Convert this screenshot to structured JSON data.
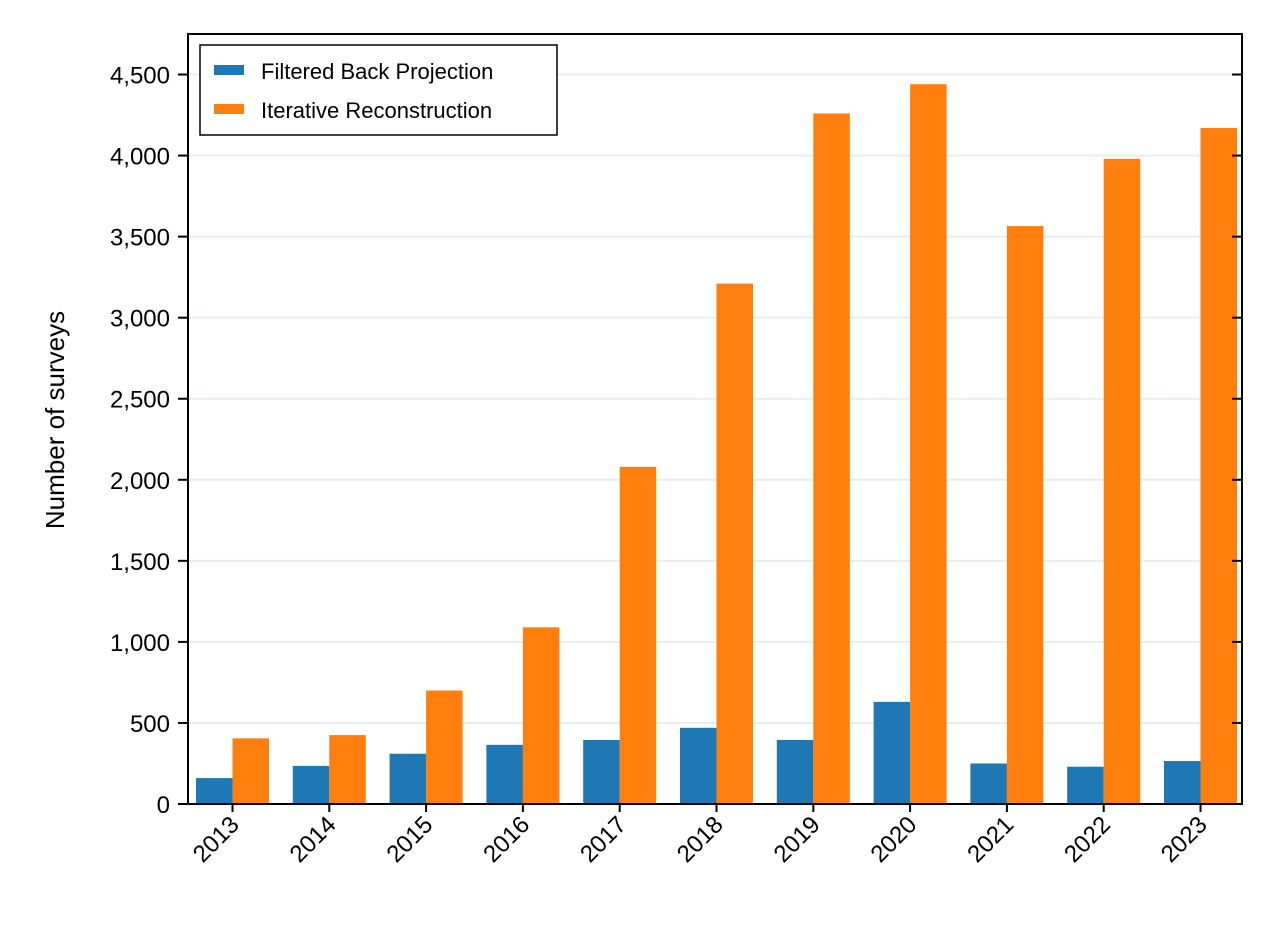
{
  "colors": {
    "background": "#ffffff",
    "gridline": "#e6eef2",
    "axis": "#000000",
    "filtered_back_projection": "#1f77b4",
    "iterative_reconstruction": "#ff7f0e"
  },
  "chart_data": {
    "type": "bar",
    "title": "",
    "xlabel": "",
    "ylabel": "Number of surveys",
    "categories": [
      "2013",
      "2014",
      "2015",
      "2016",
      "2017",
      "2018",
      "2019",
      "2020",
      "2021",
      "2022",
      "2023"
    ],
    "series": [
      {
        "name": "Filtered Back Projection",
        "color": "#1f77b4",
        "values": [
          160,
          235,
          310,
          365,
          395,
          470,
          395,
          630,
          250,
          230,
          265
        ]
      },
      {
        "name": "Iterative Reconstruction",
        "color": "#ff7f0e",
        "values": [
          405,
          425,
          700,
          1090,
          2080,
          3210,
          4260,
          4440,
          3565,
          3980,
          4170
        ]
      }
    ],
    "ylim": [
      0,
      4750
    ],
    "yticks": [
      0,
      500,
      1000,
      1500,
      2000,
      2500,
      3000,
      3500,
      4000,
      4500
    ],
    "ytick_labels": [
      "0",
      "500",
      "1,000",
      "1,500",
      "2,000",
      "2,500",
      "3,000",
      "3,500",
      "4,000",
      "4,500"
    ],
    "grid": "horizontal",
    "legend_position": "top-left",
    "xtick_rotation_deg": 45
  }
}
